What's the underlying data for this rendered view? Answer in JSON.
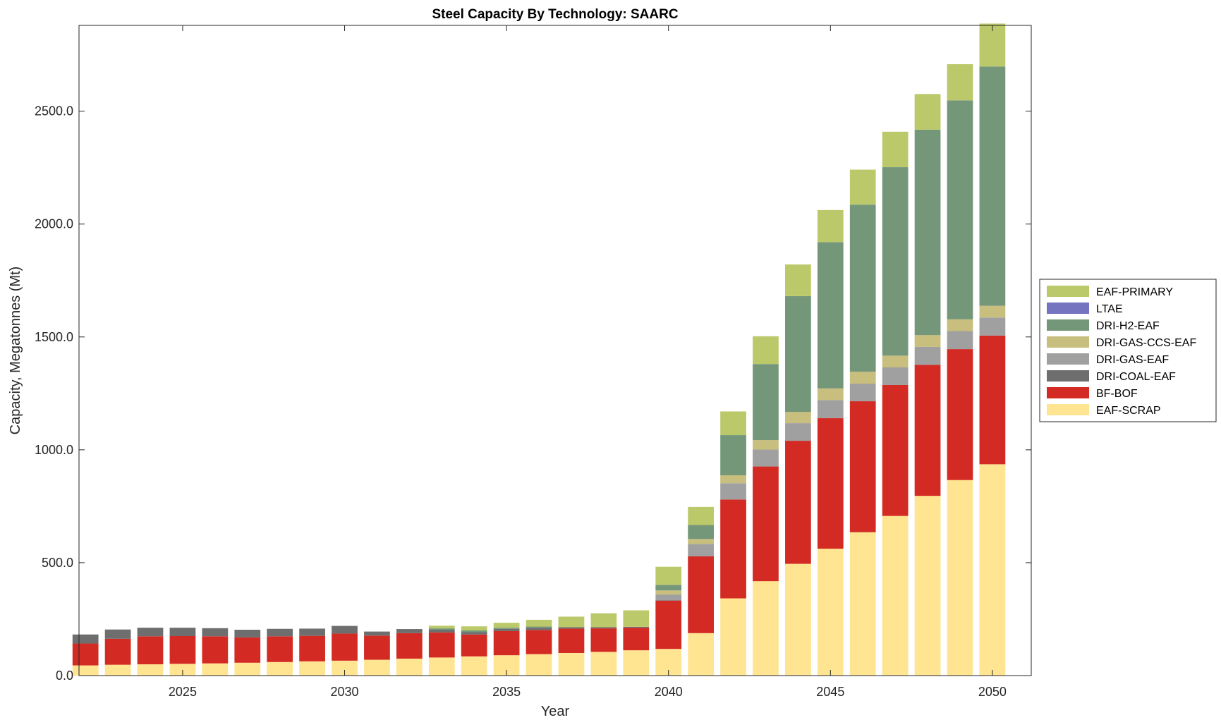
{
  "chart_data": {
    "type": "bar",
    "stacked": true,
    "title": "Steel Capacity By Technology: SAARC",
    "xlabel": "Year",
    "ylabel": "Capacity, Megatonnes (Mt)",
    "xlim": [
      2021.8,
      2051.2
    ],
    "ylim": [
      0,
      2880
    ],
    "x": [
      2022,
      2023,
      2024,
      2025,
      2026,
      2027,
      2028,
      2029,
      2030,
      2031,
      2032,
      2033,
      2034,
      2035,
      2036,
      2037,
      2038,
      2039,
      2040,
      2041,
      2042,
      2043,
      2044,
      2045,
      2046,
      2047,
      2048,
      2049,
      2050
    ],
    "xticks": [
      2025,
      2030,
      2035,
      2040,
      2045,
      2050
    ],
    "xtick_labels": [
      "2025",
      "2030",
      "2035",
      "2040",
      "2045",
      "2050"
    ],
    "yticks": [
      0,
      500,
      1000,
      1500,
      2000,
      2500
    ],
    "ytick_labels": [
      "0.0",
      "500.0",
      "1000.0",
      "1500.0",
      "2000.0",
      "2500.0"
    ],
    "grid": false,
    "legend_position": "right",
    "series": [
      {
        "name": "EAF-SCRAP",
        "color": "#FFE491",
        "values": [
          45,
          48,
          50,
          52,
          54,
          57,
          60,
          63,
          66,
          70,
          75,
          80,
          85,
          90,
          95,
          100,
          105,
          112,
          118,
          188,
          342,
          418,
          495,
          562,
          635,
          707,
          796,
          866,
          936
        ]
      },
      {
        "name": "BF-BOF",
        "color": "#D42A24",
        "values": [
          97,
          115,
          124,
          123,
          120,
          112,
          114,
          113,
          120,
          107,
          113,
          111,
          97,
          107,
          107,
          108,
          104,
          100,
          214,
          340,
          438,
          508,
          545,
          578,
          580,
          580,
          580,
          580,
          570
        ]
      },
      {
        "name": "DRI-COAL-EAF",
        "color": "#6E6E6E",
        "values": [
          40,
          41,
          38,
          37,
          36,
          34,
          33,
          32,
          34,
          18,
          18,
          12,
          10,
          10,
          10,
          6,
          5,
          4,
          2,
          0,
          0,
          0,
          0,
          0,
          0,
          0,
          0,
          0,
          0
        ]
      },
      {
        "name": "DRI-GAS-EAF",
        "color": "#A0A0A0",
        "values": [
          0,
          0,
          0,
          0,
          0,
          0,
          0,
          0,
          0,
          0,
          0,
          0,
          0,
          0,
          0,
          0,
          0,
          0,
          25,
          55,
          72,
          75,
          78,
          80,
          78,
          78,
          80,
          80,
          80
        ]
      },
      {
        "name": "DRI-GAS-CCS-EAF",
        "color": "#C8BE7D",
        "values": [
          0,
          0,
          0,
          0,
          0,
          0,
          0,
          0,
          0,
          0,
          0,
          0,
          0,
          0,
          0,
          0,
          0,
          0,
          18,
          22,
          35,
          42,
          50,
          52,
          53,
          52,
          52,
          52,
          52
        ]
      },
      {
        "name": "DRI-H2-EAF",
        "color": "#74977A",
        "values": [
          0,
          0,
          0,
          0,
          0,
          0,
          0,
          0,
          0,
          0,
          0,
          6,
          8,
          5,
          5,
          0,
          0,
          0,
          25,
          62,
          178,
          337,
          513,
          648,
          740,
          835,
          910,
          970,
          1060
        ]
      },
      {
        "name": "LTAE",
        "color": "#7474C0",
        "values": [
          0,
          0,
          0,
          0,
          0,
          0,
          0,
          0,
          0,
          0,
          0,
          0,
          0,
          0,
          0,
          0,
          0,
          0,
          0,
          0,
          0,
          0,
          0,
          0,
          0,
          0,
          0,
          0,
          0
        ]
      },
      {
        "name": "EAF-PRIMARY",
        "color": "#BCC96A",
        "values": [
          0,
          0,
          0,
          0,
          0,
          0,
          0,
          0,
          0,
          0,
          0,
          12,
          18,
          22,
          30,
          47,
          62,
          73,
          80,
          80,
          105,
          123,
          140,
          142,
          155,
          157,
          158,
          160,
          190
        ]
      }
    ],
    "legend": [
      "EAF-PRIMARY",
      "LTAE",
      "DRI-H2-EAF",
      "DRI-GAS-CCS-EAF",
      "DRI-GAS-EAF",
      "DRI-COAL-EAF",
      "BF-BOF",
      "EAF-SCRAP"
    ]
  }
}
